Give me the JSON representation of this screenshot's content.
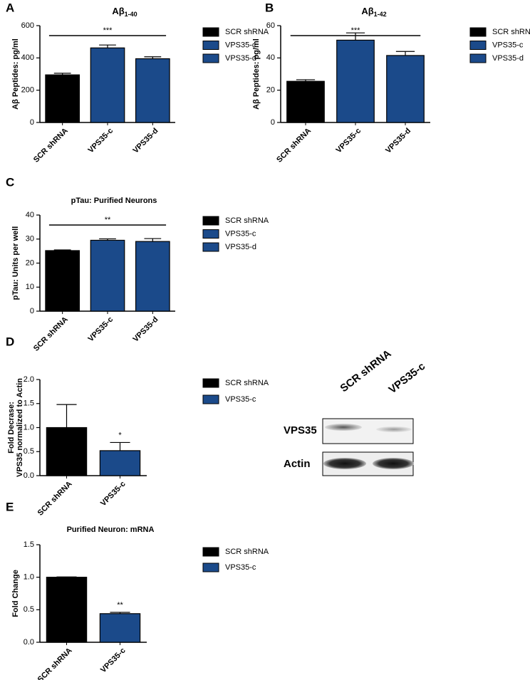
{
  "chart_data": [
    {
      "type": "bar",
      "panel": "A",
      "title": "Aβ",
      "title_subscript": "1-40",
      "ylabel": [
        "Aβ Peptides: pg/ml"
      ],
      "categories": [
        "SCR shRNA",
        "VPS35-c",
        "VPS35-d"
      ],
      "values": [
        295,
        462,
        395
      ],
      "errors": [
        10,
        18,
        12
      ],
      "colors": [
        "#000000",
        "#1b4a8a",
        "#1b4a8a"
      ],
      "ylim": [
        0,
        600
      ],
      "yticks": [
        0,
        200,
        400,
        600
      ],
      "significance": {
        "label": "***",
        "bars": [
          0,
          2
        ]
      }
    },
    {
      "type": "bar",
      "panel": "B",
      "title": "Aβ",
      "title_subscript": "1-42",
      "ylabel": [
        "Aβ Peptides: pg/ml"
      ],
      "categories": [
        "SCR shRNA",
        "VPS35-c",
        "VPS35-d"
      ],
      "values": [
        25.5,
        51,
        41.5
      ],
      "errors": [
        1,
        4.5,
        2.5
      ],
      "colors": [
        "#000000",
        "#1b4a8a",
        "#1b4a8a"
      ],
      "ylim": [
        0,
        60
      ],
      "yticks": [
        0,
        20,
        40,
        60
      ],
      "significance": {
        "label": "***",
        "bars": [
          0,
          2
        ]
      }
    },
    {
      "type": "bar",
      "panel": "C",
      "title": "pTau: Purified Neurons",
      "ylabel": [
        "pTau: Units per well"
      ],
      "categories": [
        "SCR shRNA",
        "VPS35-c",
        "VPS35-d"
      ],
      "values": [
        25.2,
        29.5,
        29
      ],
      "errors": [
        0.3,
        0.6,
        1.2
      ],
      "colors": [
        "#000000",
        "#1b4a8a",
        "#1b4a8a"
      ],
      "ylim": [
        0,
        40
      ],
      "yticks": [
        0,
        10,
        20,
        30,
        40
      ],
      "significance": {
        "label": "**",
        "bars": [
          0,
          2
        ]
      }
    },
    {
      "type": "bar",
      "panel": "D",
      "ylabel": [
        "Fold Decrase:",
        "VPS35 normalized to Actin"
      ],
      "categories": [
        "SCR shRNA",
        "VPS35-c"
      ],
      "values": [
        1.0,
        0.52
      ],
      "errors": [
        0.48,
        0.17
      ],
      "colors": [
        "#000000",
        "#1b4a8a"
      ],
      "ylim": [
        0,
        2
      ],
      "yticks": [
        {
          "value": 0,
          "label": "0.0"
        },
        0.5,
        {
          "value": 1,
          "label": "1.0"
        },
        1.5,
        {
          "value": 2,
          "label": "2.0"
        }
      ],
      "significance": {
        "label": "*",
        "bars": [
          1
        ]
      },
      "blot": {
        "lanes": [
          "SCR shRNA",
          "VPS35-c"
        ],
        "bands": [
          "VPS35",
          "Actin"
        ]
      }
    },
    {
      "type": "bar",
      "panel": "E",
      "title": "Purified Neuron: mRNA",
      "ylabel": [
        "Fold Change"
      ],
      "categories": [
        "SCR shRNA",
        "VPS35-c"
      ],
      "values": [
        1.0,
        0.44
      ],
      "errors": [
        0.005,
        0.02
      ],
      "colors": [
        "#000000",
        "#1b4a8a"
      ],
      "ylim": [
        0,
        1.5
      ],
      "yticks": [
        {
          "value": 0,
          "label": "0.0"
        },
        0.5,
        {
          "value": 1,
          "label": "1.0"
        },
        1.5
      ],
      "significance": {
        "label": "**",
        "bars": [
          1
        ]
      }
    }
  ]
}
